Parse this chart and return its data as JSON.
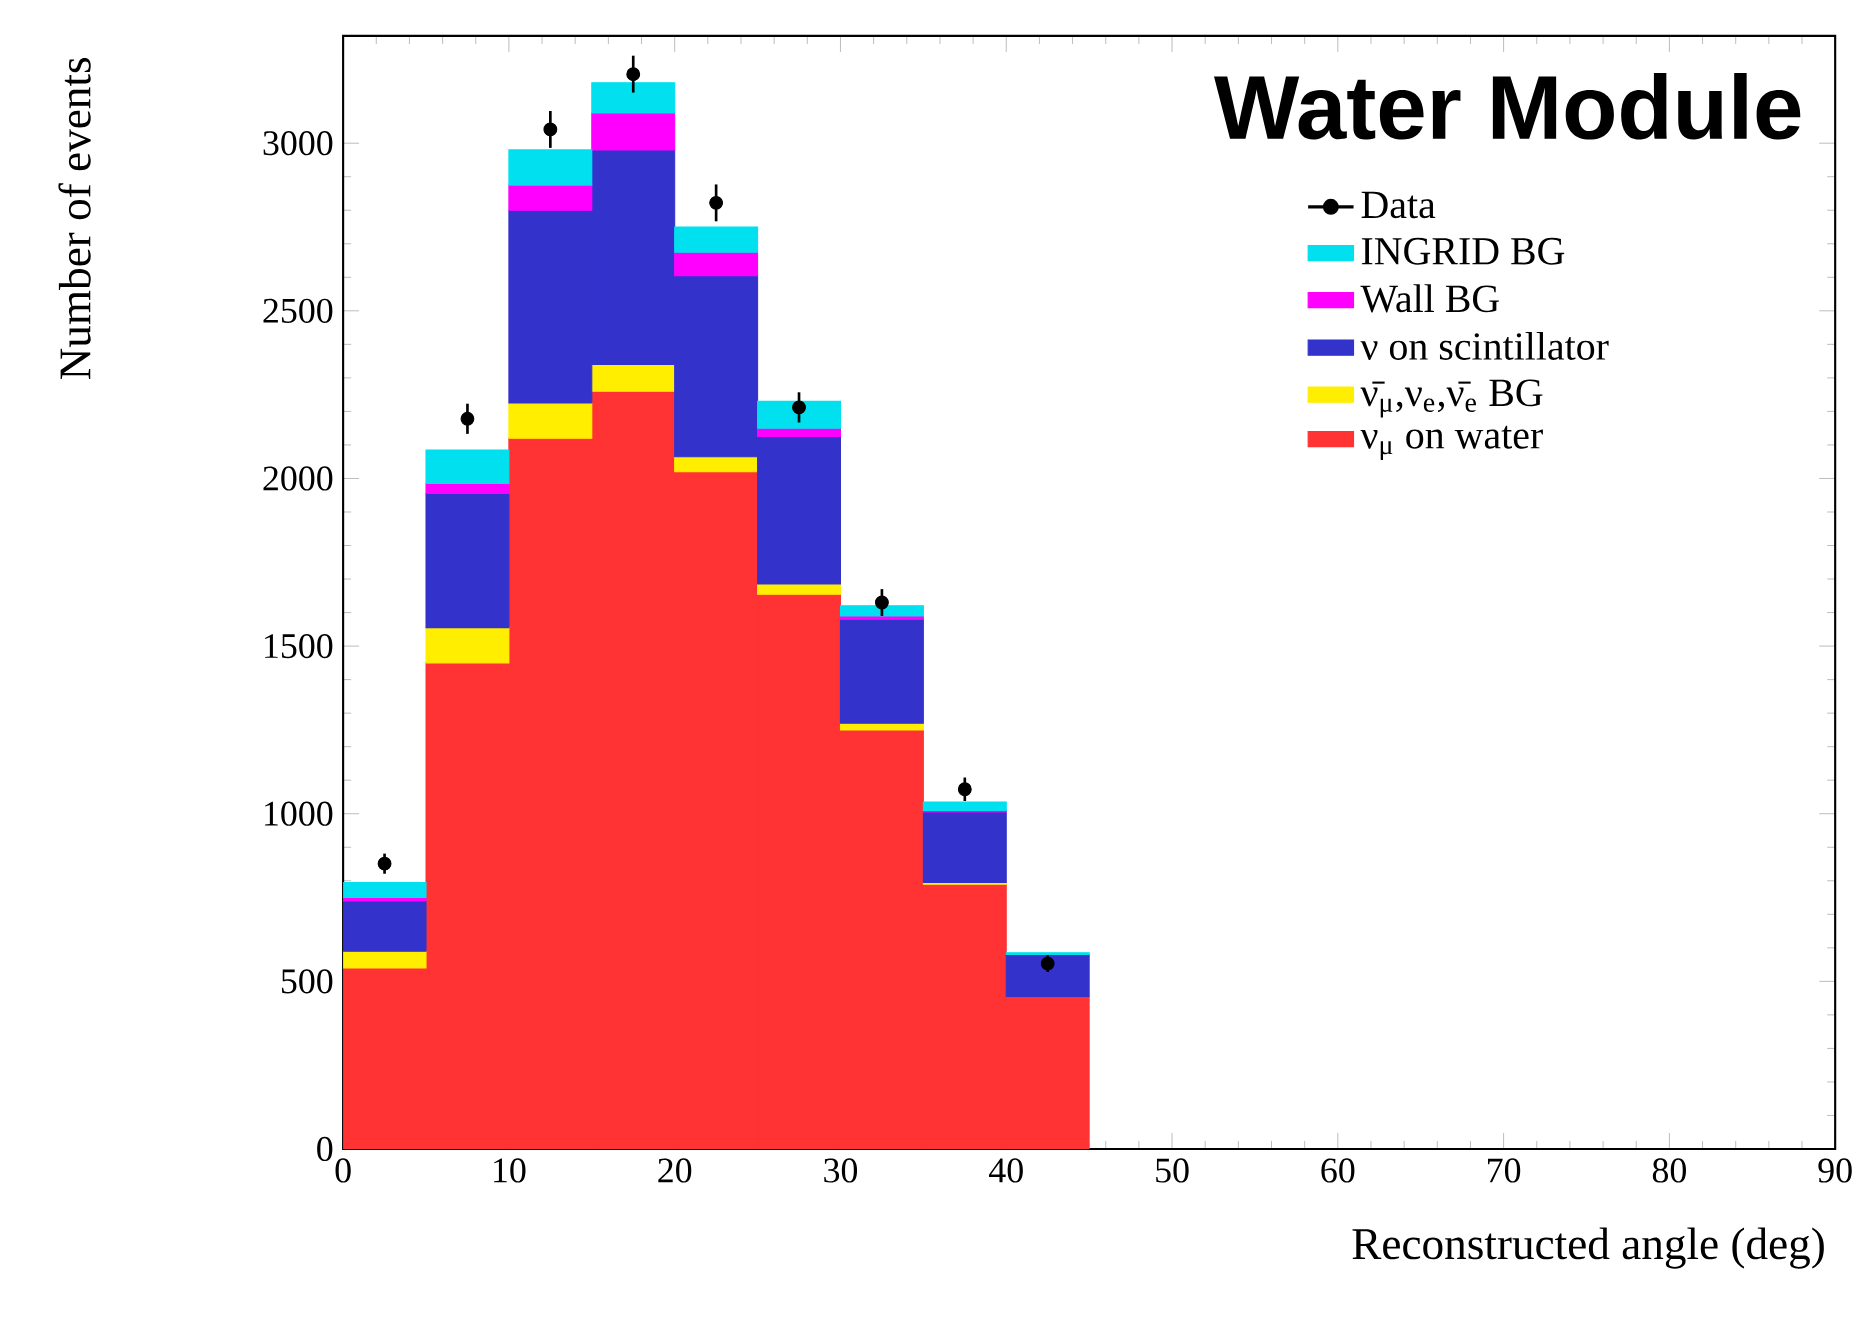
{
  "chart_data": {
    "type": "bar",
    "title": "Water Module",
    "xlabel": "Reconstructed angle (deg)",
    "ylabel": "Number of events",
    "x": [
      2.5,
      7.5,
      12.5,
      17.5,
      22.5,
      27.5,
      32.5,
      37.5,
      42.5
    ],
    "stacked": true,
    "legend": "top right",
    "xlim": [
      0,
      90
    ],
    "ylim": [
      0,
      3320
    ],
    "xticks": [
      0,
      10,
      20,
      30,
      40,
      50,
      60,
      70,
      80,
      90
    ],
    "yticks": [
      0,
      500,
      1000,
      1500,
      2000,
      2500,
      3000
    ],
    "series": [
      {
        "name": "ν$_{μ}$ on water",
        "color": "#ff3333",
        "values": [
          540,
          1450,
          2120,
          2260,
          2020,
          1655,
          1250,
          790,
          455
        ]
      },
      {
        "name": "ν̄$_{μ}$,ν$_{e}$,ν̄$_{e}$ BG",
        "color": "#ffee00",
        "values": [
          50,
          105,
          105,
          80,
          45,
          30,
          20,
          5,
          0
        ]
      },
      {
        "name": "ν on scintillator",
        "color": "#3333cc",
        "values": [
          150,
          400,
          575,
          640,
          540,
          440,
          310,
          210,
          125
        ]
      },
      {
        "name": "Wall BG",
        "color": "#ff00ff",
        "values": [
          10,
          30,
          75,
          110,
          70,
          25,
          10,
          5,
          0
        ]
      },
      {
        "name": "INGRID BG",
        "color": "#00e0ee",
        "values": [
          45,
          100,
          105,
          90,
          75,
          80,
          30,
          25,
          5
        ]
      },
      {
        "name": "Data",
        "type": "scatter",
        "color": "#000000",
        "marker": "circle",
        "values": [
          851,
          2178,
          3041,
          3206,
          2822,
          2212,
          1630,
          1073,
          553
        ],
        "errors": [
          30,
          45,
          55,
          55,
          55,
          45,
          40,
          35,
          25
        ]
      }
    ]
  }
}
